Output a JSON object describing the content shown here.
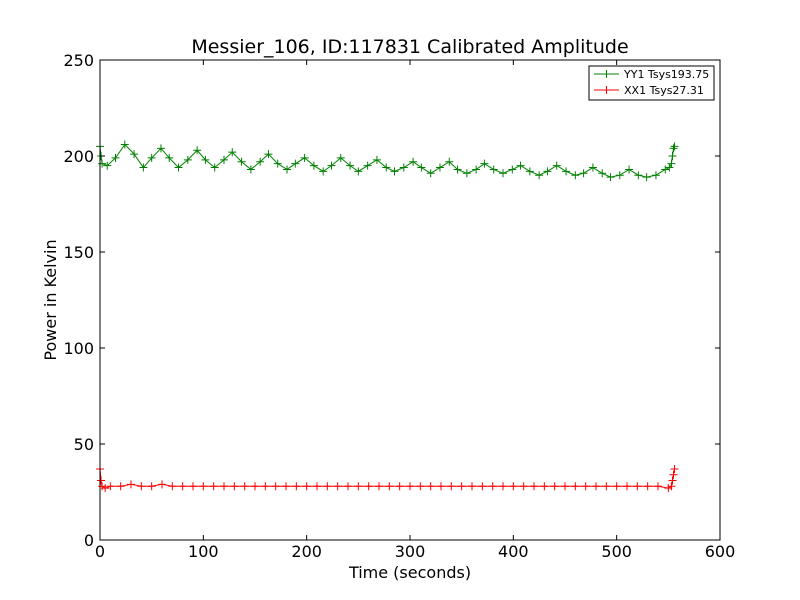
{
  "chart_data": {
    "type": "line",
    "title": "Messier_106, ID:117831 Calibrated Amplitude",
    "xlabel": "Time (seconds)",
    "ylabel": "Power in Kelvin",
    "xlim": [
      0,
      600
    ],
    "ylim": [
      0,
      250
    ],
    "xticks": [
      0,
      100,
      200,
      300,
      400,
      500,
      600
    ],
    "yticks": [
      0,
      50,
      100,
      150,
      200,
      250
    ],
    "xtick_labels": [
      "0",
      "100",
      "200",
      "300",
      "400",
      "500",
      "600"
    ],
    "ytick_labels": [
      "0",
      "50",
      "100",
      "150",
      "200",
      "250"
    ],
    "grid": false,
    "legend_position": "top-right",
    "marker": "+",
    "series": [
      {
        "name": "YY1 Tsys193.75",
        "color": "#008000",
        "x": [
          0,
          1,
          2,
          7,
          15,
          24,
          33,
          42,
          50,
          59,
          67,
          76,
          85,
          94,
          102,
          111,
          120,
          128,
          137,
          146,
          155,
          163,
          172,
          181,
          189,
          198,
          207,
          216,
          224,
          233,
          242,
          250,
          259,
          268,
          277,
          285,
          294,
          303,
          311,
          320,
          329,
          338,
          346,
          355,
          364,
          372,
          381,
          390,
          399,
          407,
          416,
          425,
          433,
          442,
          451,
          460,
          468,
          477,
          486,
          494,
          503,
          512,
          521,
          529,
          538,
          547,
          551,
          553,
          554,
          555,
          556
        ],
        "y": [
          205,
          200,
          196,
          195,
          199,
          206,
          201,
          194,
          199,
          204,
          199,
          194,
          198,
          203,
          198,
          194,
          198,
          202,
          197,
          193,
          197,
          201,
          196,
          193,
          196,
          199,
          195,
          192,
          195,
          199,
          195,
          192,
          195,
          198,
          194,
          192,
          194,
          197,
          194,
          191,
          194,
          197,
          193,
          191,
          193,
          196,
          193,
          191,
          193,
          195,
          192,
          190,
          192,
          195,
          192,
          190,
          191,
          194,
          191,
          189,
          190,
          193,
          190,
          189,
          190,
          193,
          194,
          196,
          200,
          204,
          205
        ]
      },
      {
        "name": "XX1 Tsys27.31",
        "color": "#ff0000",
        "x": [
          0,
          1,
          2,
          5,
          10,
          20,
          30,
          40,
          50,
          60,
          70,
          80,
          90,
          100,
          110,
          120,
          130,
          140,
          150,
          160,
          170,
          180,
          190,
          200,
          210,
          220,
          230,
          240,
          250,
          260,
          270,
          280,
          290,
          300,
          310,
          320,
          330,
          340,
          350,
          360,
          370,
          380,
          390,
          400,
          410,
          420,
          430,
          440,
          450,
          460,
          470,
          480,
          490,
          500,
          510,
          520,
          530,
          540,
          550,
          553,
          554,
          555,
          556
        ],
        "y": [
          37,
          31,
          28,
          27,
          28,
          28,
          29,
          28,
          28,
          29,
          28,
          28,
          28,
          28,
          28,
          28,
          28,
          28,
          28,
          28,
          28,
          28,
          28,
          28,
          28,
          28,
          28,
          28,
          28,
          28,
          28,
          28,
          28,
          28,
          28,
          28,
          28,
          28,
          28,
          28,
          28,
          28,
          28,
          28,
          28,
          28,
          28,
          28,
          28,
          28,
          28,
          28,
          28,
          28,
          28,
          28,
          28,
          28,
          27,
          28,
          31,
          34,
          37
        ]
      }
    ]
  }
}
